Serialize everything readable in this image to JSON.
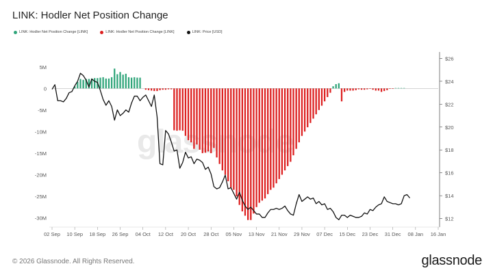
{
  "title": "LINK: Hodler Net Position Change",
  "watermark": "glassnode",
  "footer": {
    "copyright": "© 2026 Glassnode. All Rights Reserved.",
    "brand": "glassnode"
  },
  "colors": {
    "positive": "#2fa57a",
    "negative": "#dd1f1f",
    "price": "#111111"
  },
  "chart_data": {
    "type": "bar",
    "legend": [
      {
        "label": "LINK: Hodler Net Position Change [LINK]",
        "color": "#2fa57a"
      },
      {
        "label": "LINK: Hodler Net Position Change [LINK]",
        "color": "#dd1f1f"
      },
      {
        "label": "LINK: Price [USD]",
        "color": "#111111"
      }
    ],
    "x_ticks": [
      "02 Sep",
      "10 Sep",
      "18 Sep",
      "26 Sep",
      "04 Oct",
      "12 Oct",
      "20 Oct",
      "28 Oct",
      "05 Nov",
      "13 Nov",
      "21 Nov",
      "29 Nov",
      "07 Dec",
      "15 Dec",
      "23 Dec",
      "31 Dec",
      "08 Jan",
      "16 Jan"
    ],
    "x_range_days": [
      0,
      136
    ],
    "y_left": {
      "ticks": [
        "5M",
        "0",
        "-5M",
        "-10M",
        "-15M",
        "-20M",
        "-25M",
        "-30M"
      ],
      "tick_values": [
        5,
        0,
        -5,
        -10,
        -15,
        -20,
        -25,
        -30
      ],
      "range": [
        -31.5,
        7.5
      ],
      "unit": "M LINK"
    },
    "y_right": {
      "ticks": [
        "$26",
        "$24",
        "$22",
        "$20",
        "$18",
        "$16",
        "$14",
        "$12"
      ],
      "tick_values": [
        26,
        24,
        22,
        20,
        18,
        16,
        14,
        12
      ],
      "range": [
        11.5,
        26.2
      ]
    },
    "bars": {
      "day_start": 8,
      "values_millions": [
        0.5,
        1.5,
        2.2,
        2.0,
        2.2,
        2.2,
        2.3,
        2.4,
        2.4,
        2.5,
        2.6,
        2.3,
        2.3,
        2.6,
        4.6,
        3.3,
        3.8,
        3.2,
        3.4,
        2.6,
        2.5,
        2.6,
        2.5,
        2.5,
        0.0,
        -0.3,
        -0.4,
        -0.5,
        -0.6,
        -0.6,
        -0.4,
        -0.3,
        -0.3,
        -0.2,
        -0.2,
        -9.7,
        -9.8,
        -9.7,
        -9.8,
        -11.0,
        -12.0,
        -12.5,
        -14.0,
        -13.0,
        -14.2,
        -15.0,
        -14.9,
        -14.6,
        -15.0,
        -13.8,
        -16.0,
        -17.5,
        -19.0,
        -20.0,
        -21.5,
        -23.0,
        -23.5,
        -25.0,
        -27.0,
        -28.5,
        -29.5,
        -30.5,
        -30.5,
        -29.0,
        -27.5,
        -26.5,
        -26.0,
        -25.5,
        -24.5,
        -23.5,
        -23.0,
        -22.0,
        -21.0,
        -20.0,
        -19.0,
        -18.0,
        -17.0,
        -15.5,
        -14.0,
        -12.5,
        -11.0,
        -10.0,
        -9.0,
        -8.0,
        -7.0,
        -6.0,
        -5.0,
        -4.0,
        -3.0,
        -2.0,
        -1.0,
        0.5,
        1.0,
        1.2,
        -3.0,
        -0.8,
        -0.5,
        -0.5,
        -0.5,
        -0.4,
        -0.2,
        -0.3,
        -0.3,
        -0.2,
        -0.1,
        -0.3,
        -0.5,
        -0.5,
        -0.8,
        -0.6,
        -0.4,
        -0.1,
        -0.1,
        0.1,
        0.1,
        0.1,
        0.1,
        0.0
      ]
    },
    "price_line": {
      "day_step": 1,
      "values_usd": [
        23.3,
        23.7,
        22.3,
        22.3,
        22.2,
        22.5,
        23.0,
        23.1,
        23.6,
        24.0,
        24.7,
        24.5,
        24.1,
        23.5,
        24.2,
        24.0,
        23.9,
        23.2,
        22.4,
        21.9,
        22.3,
        21.8,
        20.6,
        21.5,
        21.0,
        21.2,
        21.5,
        21.3,
        22.1,
        22.7,
        22.7,
        22.3,
        22.6,
        22.8,
        22.3,
        21.8,
        22.8,
        20.9,
        16.8,
        16.7,
        19.7,
        19.4,
        18.7,
        17.9,
        18.0,
        16.4,
        16.9,
        17.8,
        17.3,
        17.4,
        16.8,
        17.2,
        17.1,
        16.9,
        16.3,
        16.5,
        15.9,
        14.8,
        14.6,
        14.7,
        15.2,
        15.8,
        14.6,
        14.7,
        14.2,
        13.7,
        14.3,
        13.6,
        13.1,
        12.8,
        13.0,
        12.7,
        12.4,
        12.4,
        12.1,
        12.1,
        12.5,
        12.8,
        12.8,
        12.9,
        12.8,
        12.9,
        13.1,
        12.7,
        12.4,
        12.3,
        13.3,
        14.1,
        13.5,
        13.7,
        13.9,
        13.7,
        13.8,
        13.3,
        13.5,
        13.2,
        13.3,
        12.8,
        12.9,
        12.6,
        12.1,
        11.9,
        12.3,
        12.3,
        12.1,
        12.3,
        12.2,
        12.1,
        12.1,
        12.2,
        12.5,
        12.4,
        12.8,
        12.7,
        13.0,
        13.2,
        13.3,
        13.9,
        13.5,
        13.4,
        13.3,
        13.3,
        13.2,
        13.3,
        14.0,
        14.1,
        13.8
      ]
    }
  }
}
